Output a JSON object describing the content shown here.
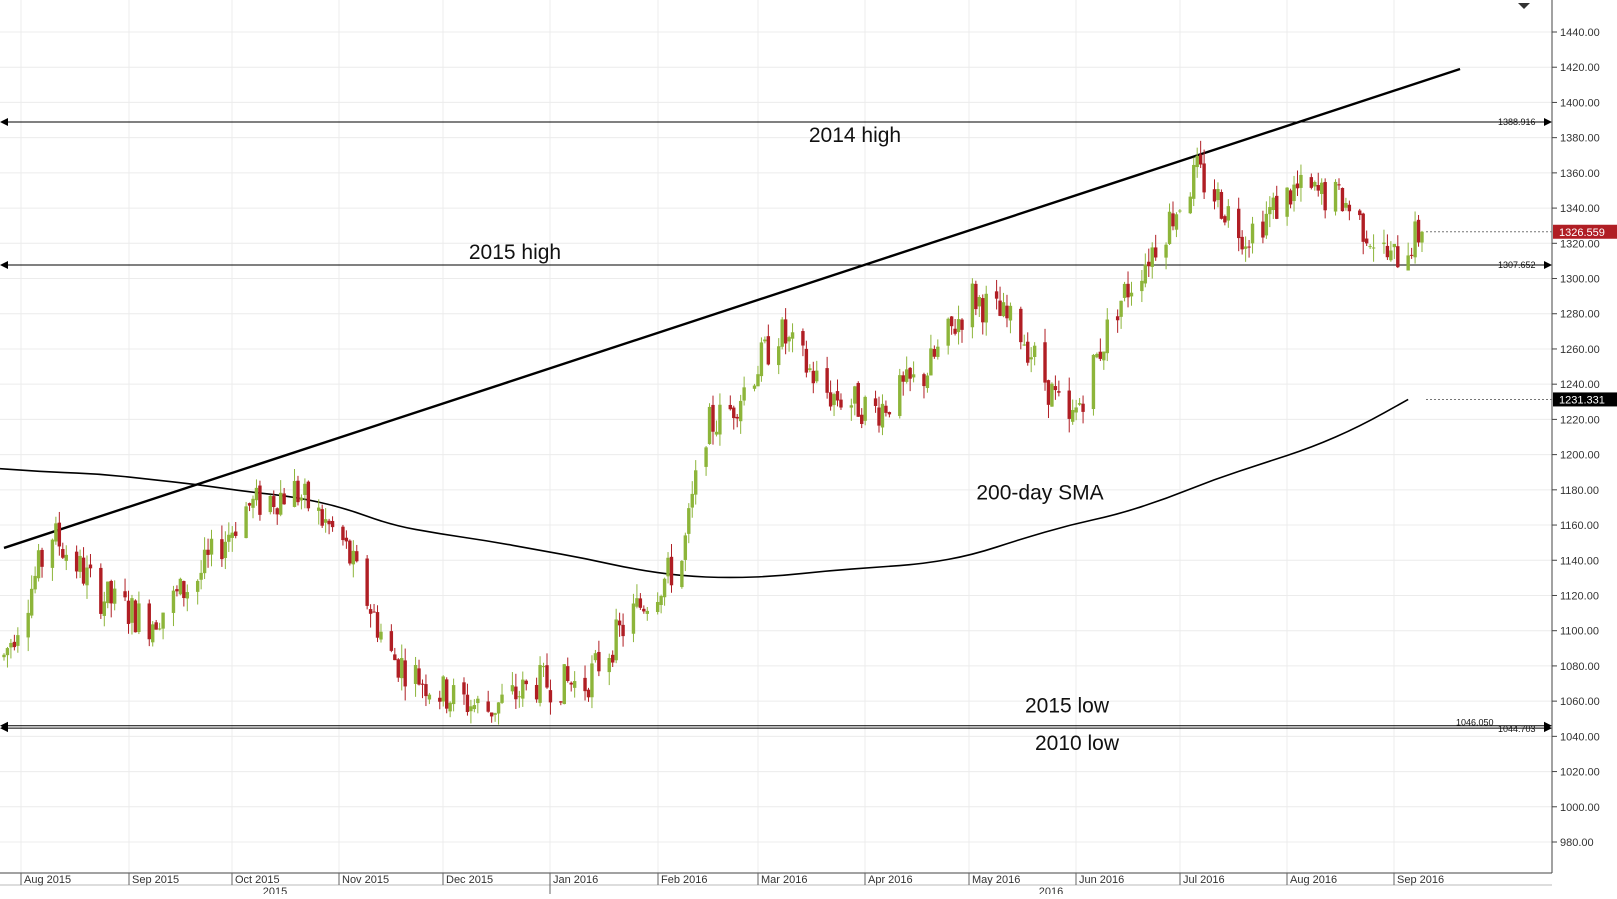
{
  "chart_data": {
    "type": "candlestick",
    "y_range": [
      960,
      1450
    ],
    "y_ticks": [
      "1440.00",
      "1420.00",
      "1400.00",
      "1380.00",
      "1360.00",
      "1340.00",
      "1320.00",
      "1300.00",
      "1280.00",
      "1260.00",
      "1240.00",
      "1220.00",
      "1200.00",
      "1180.00",
      "1160.00",
      "1140.00",
      "1120.00",
      "1100.00",
      "1080.00",
      "1060.00",
      "1040.00",
      "1020.00",
      "1000.00",
      "980.00"
    ],
    "month_labels": [
      "Aug 2015",
      "Sep 2015",
      "Oct 2015",
      "Nov 2015",
      "Dec 2015",
      "Jan 2016",
      "Feb 2016",
      "Mar 2016",
      "Apr 2016",
      "May 2016",
      "Jun 2016",
      "Jul 2016",
      "Aug 2016",
      "Sep 2016"
    ],
    "year_labels": [
      "2015",
      "2016"
    ],
    "levels": [
      {
        "value": 1388.916,
        "label": "1388.916",
        "annotation": "2014 high"
      },
      {
        "value": 1307.652,
        "label": "1307.652",
        "annotation": "2015 high"
      },
      {
        "value": 1046.05,
        "label": "1046.050",
        "annotation": "2015 low"
      },
      {
        "value": 1044.703,
        "label": "1044.703",
        "annotation": "2010 low"
      }
    ],
    "trendline": {
      "start": {
        "date": "2015-07-27",
        "value": 1147
      },
      "end": {
        "date": "2016-09-20",
        "value": 1419
      }
    },
    "sma": {
      "label": "200-day SMA",
      "points": [
        [
          "2015-07-27",
          1192
        ],
        [
          "2015-08-10",
          1190
        ],
        [
          "2015-08-24",
          1189
        ],
        [
          "2015-09-07",
          1186
        ],
        [
          "2015-09-21",
          1183
        ],
        [
          "2015-10-05",
          1179
        ],
        [
          "2015-10-19",
          1176
        ],
        [
          "2015-11-02",
          1170
        ],
        [
          "2015-11-16",
          1160
        ],
        [
          "2015-11-30",
          1155
        ],
        [
          "2015-12-14",
          1151
        ],
        [
          "2015-12-28",
          1146
        ],
        [
          "2016-01-11",
          1141
        ],
        [
          "2016-01-25",
          1135
        ],
        [
          "2016-02-08",
          1131
        ],
        [
          "2016-02-22",
          1130
        ],
        [
          "2016-03-07",
          1131
        ],
        [
          "2016-03-21",
          1134
        ],
        [
          "2016-04-04",
          1136
        ],
        [
          "2016-04-18",
          1138
        ],
        [
          "2016-05-02",
          1143
        ],
        [
          "2016-05-16",
          1152
        ],
        [
          "2016-05-30",
          1160
        ],
        [
          "2016-06-13",
          1166
        ],
        [
          "2016-06-27",
          1175
        ],
        [
          "2016-07-11",
          1186
        ],
        [
          "2016-07-25",
          1195
        ],
        [
          "2016-08-08",
          1204
        ],
        [
          "2016-08-22",
          1216
        ],
        [
          "2016-09-05",
          1231.331
        ]
      ]
    },
    "current_price": {
      "value": 1326.559,
      "label": "1326.559"
    },
    "sma_badge": {
      "value": 1231.331,
      "label": "1231.331"
    },
    "anchors": [
      [
        "2015-07-27",
        1085
      ],
      [
        "2015-08-10",
        1155
      ],
      [
        "2015-08-24",
        1120
      ],
      [
        "2015-09-07",
        1105
      ],
      [
        "2015-09-21",
        1130
      ],
      [
        "2015-10-05",
        1170
      ],
      [
        "2015-10-19",
        1180
      ],
      [
        "2015-11-02",
        1150
      ],
      [
        "2015-11-16",
        1085
      ],
      [
        "2015-11-30",
        1065
      ],
      [
        "2015-12-14",
        1055
      ],
      [
        "2015-12-28",
        1070
      ],
      [
        "2016-01-11",
        1070
      ],
      [
        "2016-01-25",
        1110
      ],
      [
        "2016-02-08",
        1140
      ],
      [
        "2016-02-15",
        1215
      ],
      [
        "2016-02-22",
        1225
      ],
      [
        "2016-03-07",
        1270
      ],
      [
        "2016-03-21",
        1235
      ],
      [
        "2016-04-04",
        1225
      ],
      [
        "2016-04-18",
        1245
      ],
      [
        "2016-05-02",
        1290
      ],
      [
        "2016-05-16",
        1270
      ],
      [
        "2016-05-30",
        1215
      ],
      [
        "2016-06-13",
        1285
      ],
      [
        "2016-06-24",
        1320
      ],
      [
        "2016-07-06",
        1360
      ],
      [
        "2016-07-20",
        1325
      ],
      [
        "2016-08-03",
        1350
      ],
      [
        "2016-08-17",
        1345
      ],
      [
        "2016-08-31",
        1310
      ],
      [
        "2016-09-09",
        1326.559
      ]
    ],
    "colors": {
      "up": "#8db53a",
      "down": "#b01e24",
      "trend": "#000000",
      "sma": "#000000",
      "price_badge": "#b01e24",
      "sma_badge": "#000000",
      "grid": "#ececec"
    }
  }
}
